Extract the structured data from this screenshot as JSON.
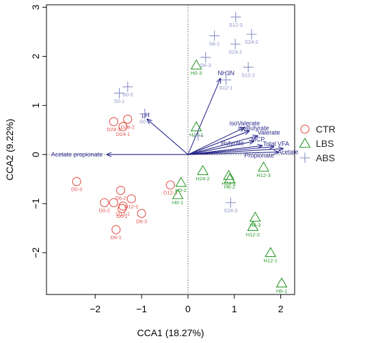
{
  "chart_data": {
    "type": "scatter",
    "title": "",
    "xlabel": "CCA1 (18.27%)",
    "ylabel": "CCA2 (9.22%)",
    "xlim": [
      -3.05,
      2.3
    ],
    "ylim": [
      -2.85,
      3.05
    ],
    "x_ticks": [
      -2,
      -1,
      0,
      1,
      2
    ],
    "y_ticks": [
      -2,
      -1,
      0,
      1,
      2,
      3
    ],
    "reference_lines": {
      "x": 0,
      "y": 0,
      "style": "dotted"
    },
    "grid": false,
    "legend": {
      "position": "right"
    },
    "colors": {
      "CTR": "#e0534b",
      "LBS": "#2e9a2e",
      "ABS": "#8a8fc6",
      "vectors": "#2b2a8c"
    },
    "series": [
      {
        "name": "CTR",
        "marker": "circle",
        "points": [
          {
            "x": -2.4,
            "y": -0.55,
            "label": "D0-3"
          },
          {
            "x": -1.8,
            "y": -0.98,
            "label": "D0-2"
          },
          {
            "x": -1.45,
            "y": -0.73,
            "label": "D6-2"
          },
          {
            "x": -1.6,
            "y": -0.98,
            "label": ""
          },
          {
            "x": -1.4,
            "y": -1.05,
            "label": "D12-1"
          },
          {
            "x": -1.42,
            "y": -1.1,
            "label": "D0-1"
          },
          {
            "x": -1.22,
            "y": -0.9,
            "label": "D12-2"
          },
          {
            "x": -1.0,
            "y": -1.2,
            "label": "D6-3"
          },
          {
            "x": -1.55,
            "y": -1.53,
            "label": "D6-1"
          },
          {
            "x": -0.38,
            "y": -0.62,
            "label": "D12-3"
          },
          {
            "x": -1.6,
            "y": 0.67,
            "label": "D24-3"
          },
          {
            "x": -1.3,
            "y": 0.72,
            "label": "D24-2"
          },
          {
            "x": -1.4,
            "y": 0.57,
            "label": "D24-1"
          }
        ]
      },
      {
        "name": "LBS",
        "marker": "triangle",
        "points": [
          {
            "x": 0.18,
            "y": 1.82,
            "label": "H0-3"
          },
          {
            "x": 0.18,
            "y": 0.56,
            "label": "H24-1"
          },
          {
            "x": 0.32,
            "y": -0.33,
            "label": "H24-2"
          },
          {
            "x": 0.88,
            "y": -0.43,
            "label": "H24-3"
          },
          {
            "x": 0.9,
            "y": -0.5,
            "label": "H6-2"
          },
          {
            "x": 1.63,
            "y": -0.26,
            "label": "H12-3"
          },
          {
            "x": 1.45,
            "y": -1.28,
            "label": "H6-3"
          },
          {
            "x": 1.4,
            "y": -1.47,
            "label": "H12-2"
          },
          {
            "x": 1.78,
            "y": -2.0,
            "label": "H12-1"
          },
          {
            "x": 2.02,
            "y": -2.62,
            "label": "H6-1"
          },
          {
            "x": -0.15,
            "y": -0.57,
            "label": "H0-2"
          },
          {
            "x": -0.22,
            "y": -0.82,
            "label": "H0-1"
          }
        ]
      },
      {
        "name": "ABS",
        "marker": "plus",
        "points": [
          {
            "x": 1.03,
            "y": 2.8,
            "label": "S12-3"
          },
          {
            "x": 0.57,
            "y": 2.42,
            "label": "S6-2"
          },
          {
            "x": 1.02,
            "y": 2.25,
            "label": "S24-1"
          },
          {
            "x": 1.37,
            "y": 2.45,
            "label": "S24-2"
          },
          {
            "x": 0.38,
            "y": 1.98,
            "label": "S6-3"
          },
          {
            "x": 1.3,
            "y": 1.78,
            "label": "S12-2"
          },
          {
            "x": 0.82,
            "y": 1.52,
            "label": "S12-1"
          },
          {
            "x": -1.3,
            "y": 1.38,
            "label": "S0-2"
          },
          {
            "x": -1.48,
            "y": 1.25,
            "label": "S0-1"
          },
          {
            "x": -0.93,
            "y": 0.83,
            "label": "S0-3"
          },
          {
            "x": 0.22,
            "y": 0.38,
            "label": ""
          },
          {
            "x": 0.92,
            "y": -0.98,
            "label": "S24-3"
          }
        ]
      }
    ],
    "vectors": [
      {
        "label": "NH3N",
        "x": 0.7,
        "y": 1.55
      },
      {
        "label": "pH",
        "x": -0.88,
        "y": 0.72
      },
      {
        "label": "isoValerate",
        "x": 1.22,
        "y": 0.55
      },
      {
        "label": "isoButyrate",
        "x": 1.32,
        "y": 0.48
      },
      {
        "label": "Valerate",
        "x": 1.5,
        "y": 0.38
      },
      {
        "label": "MCP",
        "x": 1.42,
        "y": 0.27
      },
      {
        "label": "Butyrate",
        "x": 1.6,
        "y": 0.18
      },
      {
        "label": "Total VFA",
        "x": 1.85,
        "y": 0.16
      },
      {
        "label": "Acetate",
        "x": 2.05,
        "y": 0.12
      },
      {
        "label": "Propionate",
        "x": 1.95,
        "y": 0.05
      },
      {
        "label": "Acetate propionate",
        "x": -1.75,
        "y": 0.0
      }
    ]
  }
}
